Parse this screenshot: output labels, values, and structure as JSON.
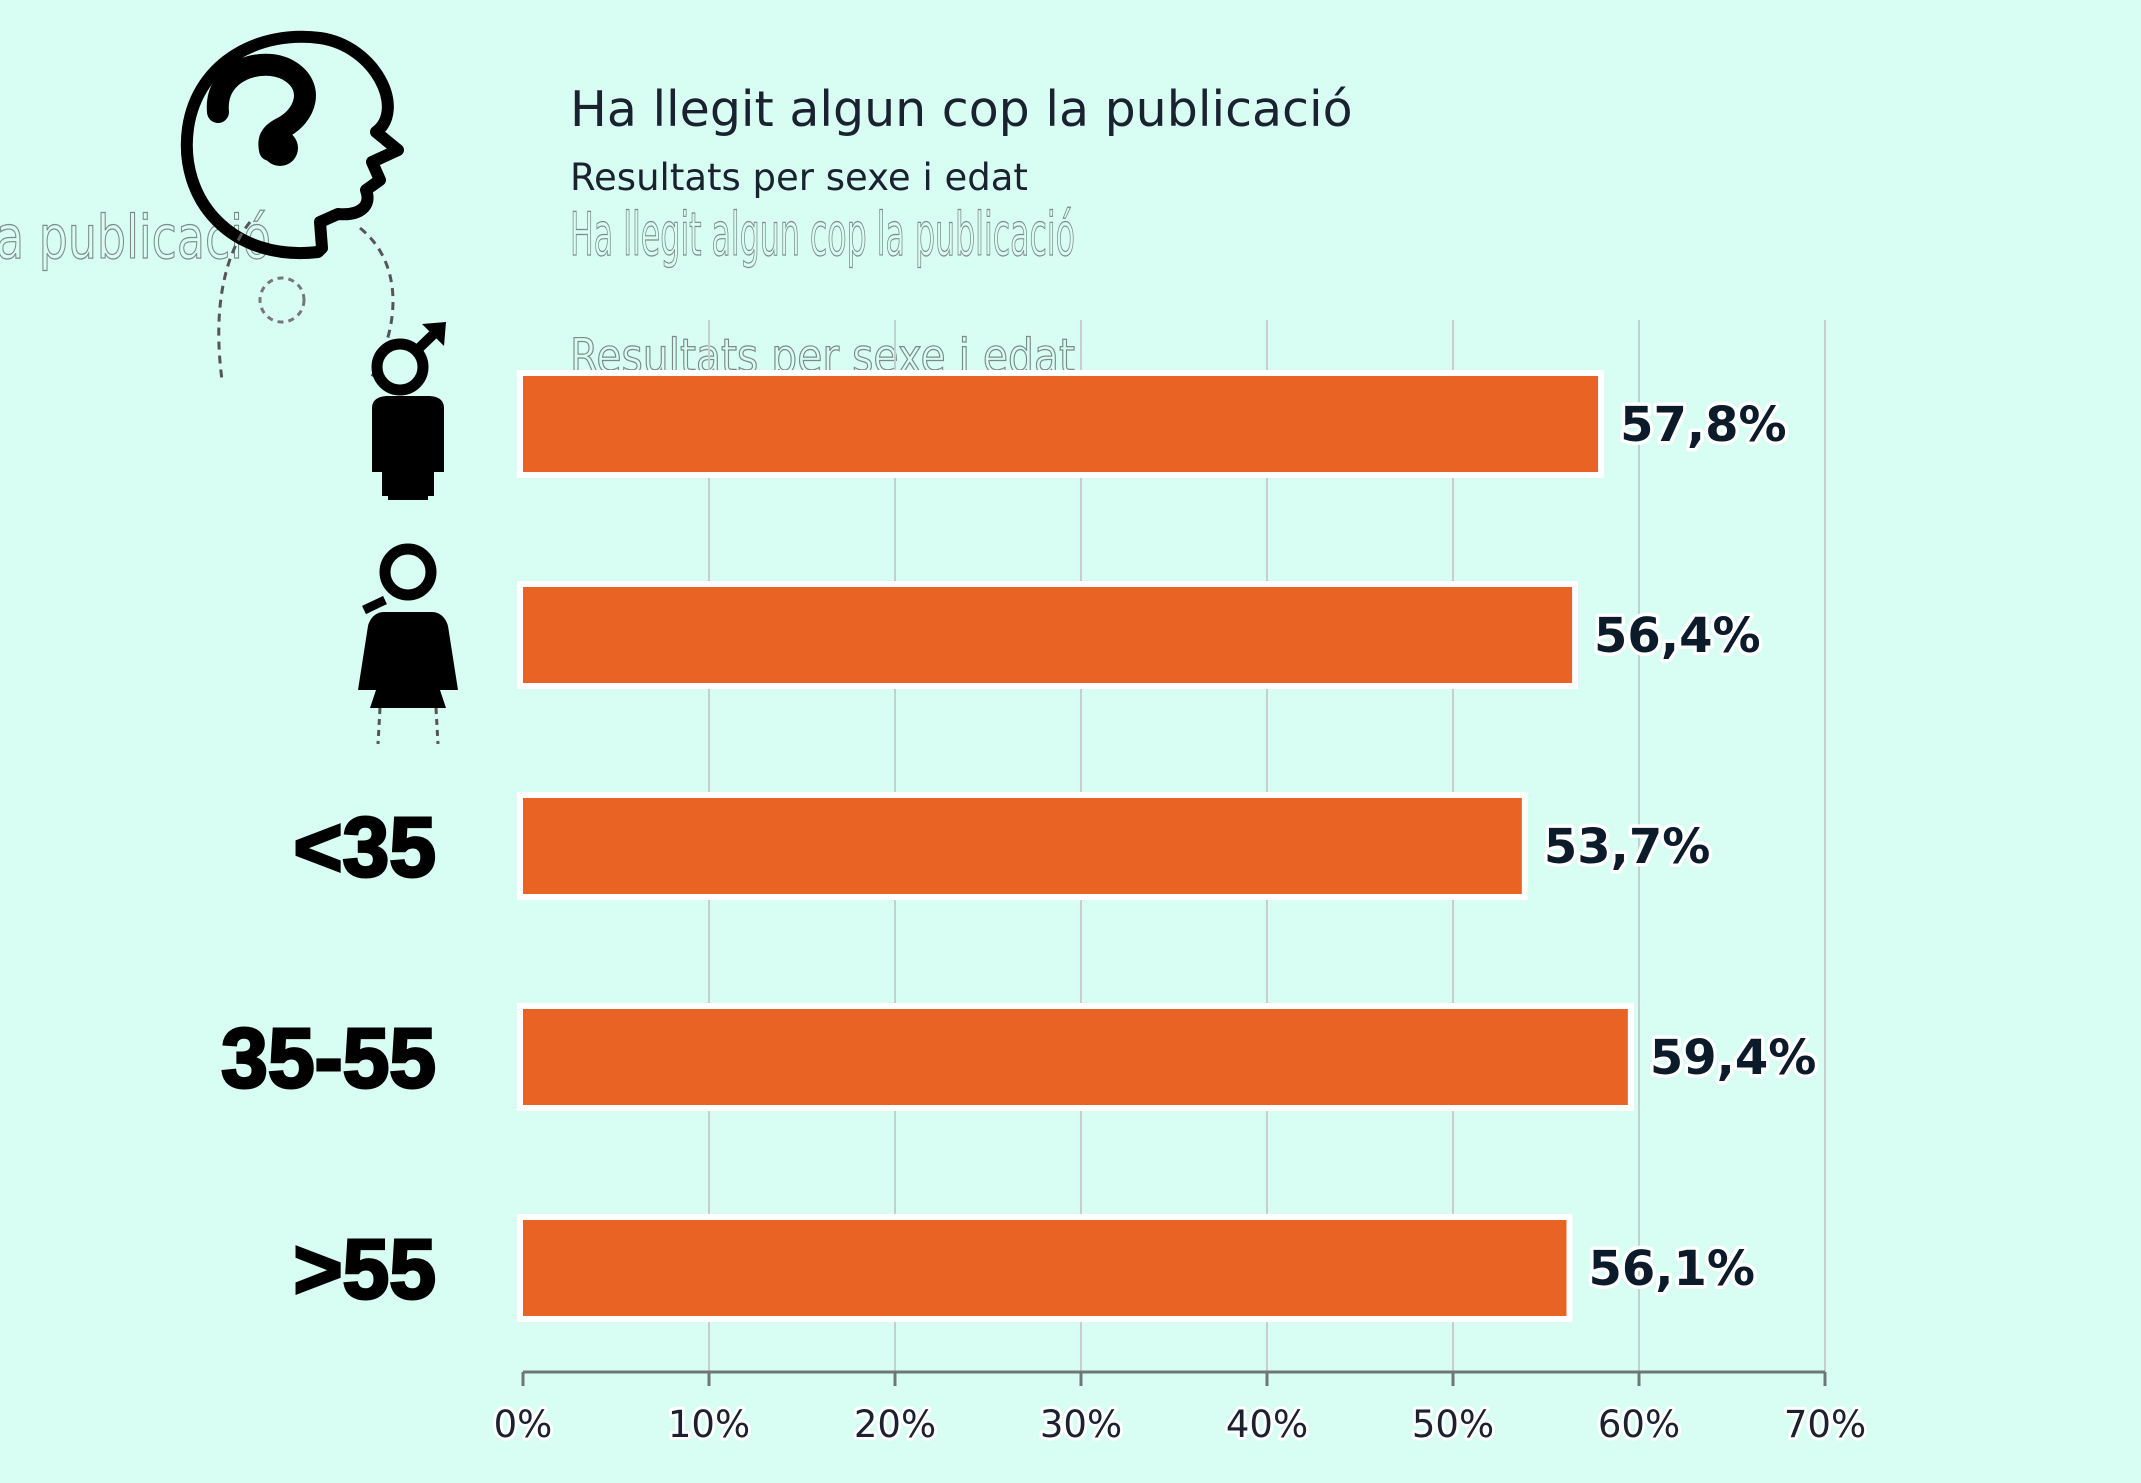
{
  "chart_data": {
    "type": "bar",
    "orientation": "horizontal",
    "title": "Ha llegit algun cop la publicació",
    "subtitle": "Resultats per sexe i edat",
    "categories": [
      "♂",
      "♀",
      "<35",
      "35-55",
      ">55"
    ],
    "category_kinds": [
      "male-icon",
      "female-icon",
      "text",
      "text",
      "text"
    ],
    "values": [
      57.8,
      56.4,
      53.7,
      59.4,
      56.1
    ],
    "value_labels": [
      "57,8%",
      "56,4%",
      "53,7%",
      "59,4%",
      "56,1%"
    ],
    "xlim": [
      0,
      70
    ],
    "xticks": [
      0,
      10,
      20,
      30,
      40,
      50,
      60,
      70
    ],
    "xtick_labels": [
      "0%",
      "10%",
      "20%",
      "30%",
      "40%",
      "50%",
      "60%",
      "70%"
    ],
    "grid": true,
    "colors": {
      "bar": "#e96324",
      "background": "#d8fdf2"
    }
  },
  "decor": {
    "head_icon": "head-question-icon",
    "ghost_title": "Ha llegit algun cop la publicació",
    "ghost_subtitle": "Resultats per sexe i edat",
    "ghost_left": "a publicació"
  }
}
